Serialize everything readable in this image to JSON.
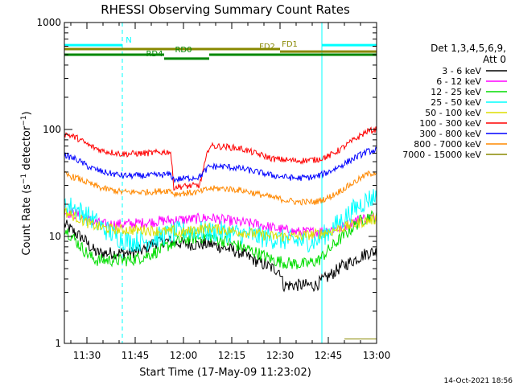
{
  "chart_data": {
    "type": "line",
    "title": "RHESSI Observing Summary Count Rates",
    "xlabel": "Start Time (17-May-09 11:23:02)",
    "ylabel": "Count Rate (s⁻¹ detector⁻¹)",
    "ylabel_main": "Count Rate (s",
    "ylabel_sup1": "−1",
    "ylabel_mid": " detector",
    "ylabel_sup2": "−1",
    "ylabel_end": ")",
    "yscale": "log",
    "ylim": [
      1,
      1000
    ],
    "xlim_minutes": [
      0,
      97
    ],
    "x_ticks": [
      {
        "label": "11:30",
        "m": 7
      },
      {
        "label": "11:45",
        "m": 22
      },
      {
        "label": "12:00",
        "m": 37
      },
      {
        "label": "12:15",
        "m": 52
      },
      {
        "label": "12:30",
        "m": 67
      },
      {
        "label": "12:45",
        "m": 82
      },
      {
        "label": "13:00",
        "m": 97
      }
    ],
    "y_ticks": [
      {
        "label": "1",
        "v": 1
      },
      {
        "label": "10",
        "v": 10
      },
      {
        "label": "100",
        "v": 100
      },
      {
        "label": "1000",
        "v": 1000
      }
    ],
    "legend_title": "Det 1,3,4,5,6,9,",
    "legend_att": "Att 0",
    "legend_placement": "right",
    "series": [
      {
        "name": "3 - 6 keV",
        "color": "#000000",
        "noise": 0.06,
        "points": [
          [
            0,
            13
          ],
          [
            3,
            11
          ],
          [
            6,
            9.5
          ],
          [
            8,
            8
          ],
          [
            10,
            7
          ],
          [
            15,
            7
          ],
          [
            20,
            7
          ],
          [
            25,
            7.5
          ],
          [
            27,
            8.5
          ],
          [
            30,
            9
          ],
          [
            33,
            9
          ],
          [
            35,
            8.7
          ],
          [
            40,
            8.4
          ],
          [
            45,
            8.5
          ],
          [
            50,
            7.8
          ],
          [
            55,
            7
          ],
          [
            60,
            5.8
          ],
          [
            65,
            5
          ],
          [
            67,
            4.8
          ],
          [
            68,
            3.5
          ],
          [
            75,
            3.5
          ],
          [
            78,
            3.5
          ],
          [
            82,
            4.2
          ],
          [
            86,
            5.2
          ],
          [
            90,
            6
          ],
          [
            94,
            7
          ],
          [
            97,
            7.2
          ]
        ]
      },
      {
        "name": "6 - 12 keV",
        "color": "#ff00ff",
        "noise": 0.05,
        "points": [
          [
            0,
            17
          ],
          [
            4,
            16
          ],
          [
            8,
            14
          ],
          [
            12,
            13
          ],
          [
            18,
            13
          ],
          [
            26,
            13.5
          ],
          [
            30,
            14
          ],
          [
            40,
            14.5
          ],
          [
            45,
            15
          ],
          [
            50,
            14.2
          ],
          [
            55,
            13.5
          ],
          [
            60,
            13
          ],
          [
            65,
            12
          ],
          [
            72,
            11
          ],
          [
            78,
            11
          ],
          [
            82,
            11.5
          ],
          [
            86,
            12
          ],
          [
            90,
            14
          ],
          [
            94,
            15
          ],
          [
            97,
            15
          ]
        ]
      },
      {
        "name": "12 - 25 keV",
        "color": "#00dd00",
        "noise": 0.06,
        "points": [
          [
            0,
            12
          ],
          [
            3,
            9.5
          ],
          [
            6,
            7.5
          ],
          [
            8,
            6.5
          ],
          [
            10,
            6
          ],
          [
            20,
            6
          ],
          [
            25,
            6.5
          ],
          [
            30,
            7.5
          ],
          [
            33,
            8.5
          ],
          [
            38,
            9.5
          ],
          [
            45,
            10
          ],
          [
            50,
            9
          ],
          [
            55,
            8
          ],
          [
            60,
            7
          ],
          [
            65,
            6
          ],
          [
            70,
            5.6
          ],
          [
            75,
            5.5
          ],
          [
            79,
            6
          ],
          [
            84,
            8.5
          ],
          [
            88,
            11
          ],
          [
            92,
            14
          ],
          [
            95,
            15.5
          ],
          [
            97,
            15
          ]
        ]
      },
      {
        "name": "25 - 50 keV",
        "color": "#00ffff",
        "noise": 0.1,
        "points": [
          [
            0,
            20
          ],
          [
            4,
            18
          ],
          [
            8,
            15
          ],
          [
            12,
            12
          ],
          [
            16,
            10
          ],
          [
            20,
            9
          ],
          [
            25,
            9
          ],
          [
            30,
            10
          ],
          [
            35,
            11
          ],
          [
            40,
            11.5
          ],
          [
            45,
            11
          ],
          [
            50,
            11
          ],
          [
            55,
            10.5
          ],
          [
            60,
            10
          ],
          [
            65,
            9.5
          ],
          [
            72,
            9
          ],
          [
            78,
            9
          ],
          [
            82,
            11
          ],
          [
            86,
            14
          ],
          [
            90,
            18
          ],
          [
            94,
            22
          ],
          [
            97,
            24
          ]
        ]
      },
      {
        "name": "50 - 100 keV",
        "color": "#dddd00",
        "noise": 0.05,
        "points": [
          [
            0,
            17
          ],
          [
            4,
            15
          ],
          [
            8,
            13
          ],
          [
            12,
            12
          ],
          [
            18,
            11.5
          ],
          [
            25,
            11.5
          ],
          [
            33,
            11
          ],
          [
            34,
            11.5
          ],
          [
            35,
            10.5
          ],
          [
            40,
            11.5
          ],
          [
            45,
            12
          ],
          [
            50,
            11.5
          ],
          [
            55,
            11
          ],
          [
            60,
            10.5
          ],
          [
            65,
            10
          ],
          [
            72,
            10
          ],
          [
            78,
            10.5
          ],
          [
            82,
            11
          ],
          [
            86,
            12
          ],
          [
            90,
            13
          ],
          [
            94,
            14
          ],
          [
            97,
            14.5
          ]
        ]
      },
      {
        "name": "100 - 300 keV",
        "color": "#ff0000",
        "noise": 0.03,
        "points": [
          [
            0,
            92
          ],
          [
            4,
            83
          ],
          [
            8,
            70
          ],
          [
            12,
            63
          ],
          [
            18,
            59
          ],
          [
            26,
            60
          ],
          [
            33,
            62
          ],
          [
            34,
            29
          ],
          [
            42,
            30
          ],
          [
            45,
            70
          ],
          [
            50,
            69
          ],
          [
            55,
            66
          ],
          [
            60,
            59
          ],
          [
            65,
            53
          ],
          [
            72,
            51
          ],
          [
            78,
            52
          ],
          [
            82,
            56
          ],
          [
            86,
            66
          ],
          [
            90,
            80
          ],
          [
            94,
            96
          ],
          [
            97,
            100
          ]
        ]
      },
      {
        "name": "300 - 800 keV",
        "color": "#0000ff",
        "noise": 0.03,
        "points": [
          [
            0,
            58
          ],
          [
            4,
            52
          ],
          [
            8,
            44
          ],
          [
            12,
            40
          ],
          [
            18,
            37
          ],
          [
            26,
            37
          ],
          [
            33,
            38
          ],
          [
            34,
            34
          ],
          [
            42,
            36
          ],
          [
            45,
            45
          ],
          [
            50,
            45
          ],
          [
            55,
            43
          ],
          [
            60,
            40
          ],
          [
            65,
            37
          ],
          [
            72,
            35
          ],
          [
            78,
            36
          ],
          [
            82,
            40
          ],
          [
            86,
            46
          ],
          [
            90,
            54
          ],
          [
            94,
            62
          ],
          [
            97,
            64
          ]
        ]
      },
      {
        "name": "800 - 7000 keV",
        "color": "#ff8800",
        "noise": 0.03,
        "points": [
          [
            0,
            38
          ],
          [
            4,
            35
          ],
          [
            8,
            31
          ],
          [
            12,
            28
          ],
          [
            18,
            26
          ],
          [
            26,
            26
          ],
          [
            33,
            27
          ],
          [
            34,
            25
          ],
          [
            42,
            26
          ],
          [
            45,
            28
          ],
          [
            50,
            28
          ],
          [
            55,
            27
          ],
          [
            60,
            25
          ],
          [
            65,
            23
          ],
          [
            72,
            21
          ],
          [
            78,
            21
          ],
          [
            82,
            23
          ],
          [
            86,
            27
          ],
          [
            90,
            32
          ],
          [
            94,
            38
          ],
          [
            97,
            40
          ]
        ]
      },
      {
        "name": "7000 - 15000 keV",
        "color": "#888800",
        "noise": 0.0,
        "points": [
          [
            87,
            1.1
          ],
          [
            97,
            1.1
          ]
        ]
      }
    ],
    "states": [
      {
        "label": "N",
        "color": "#00ffff",
        "level": 615,
        "segments": [
          [
            0,
            18
          ],
          [
            80,
            97
          ]
        ],
        "label_m": 20
      },
      {
        "label": "FD1",
        "color": "#888800",
        "level": 565,
        "segments": [
          [
            0,
            67
          ]
        ],
        "label_m": 70
      },
      {
        "label": "FD2",
        "color": "#888800",
        "level": 535,
        "segments": [
          [
            67,
            97
          ]
        ],
        "label_m": 63
      },
      {
        "label": "RD0",
        "color": "#008800",
        "level": 500,
        "segments": [
          [
            0,
            31
          ],
          [
            45,
            97
          ]
        ],
        "label_m": 37
      },
      {
        "label": "RD4",
        "color": "#008800",
        "level": 460,
        "segments": [
          [
            31,
            45
          ]
        ],
        "label_m": 28
      }
    ],
    "vertical_lines": [
      {
        "m": 0,
        "color": "#00ffff",
        "dash": false
      },
      {
        "m": 18,
        "color": "#00ffff",
        "dash": true
      },
      {
        "m": 80,
        "color": "#00ffff",
        "dash": false
      },
      {
        "m": 97,
        "color": "#00ffff",
        "dash": true
      }
    ],
    "timestamp": "14-Oct-2021 18:56"
  }
}
